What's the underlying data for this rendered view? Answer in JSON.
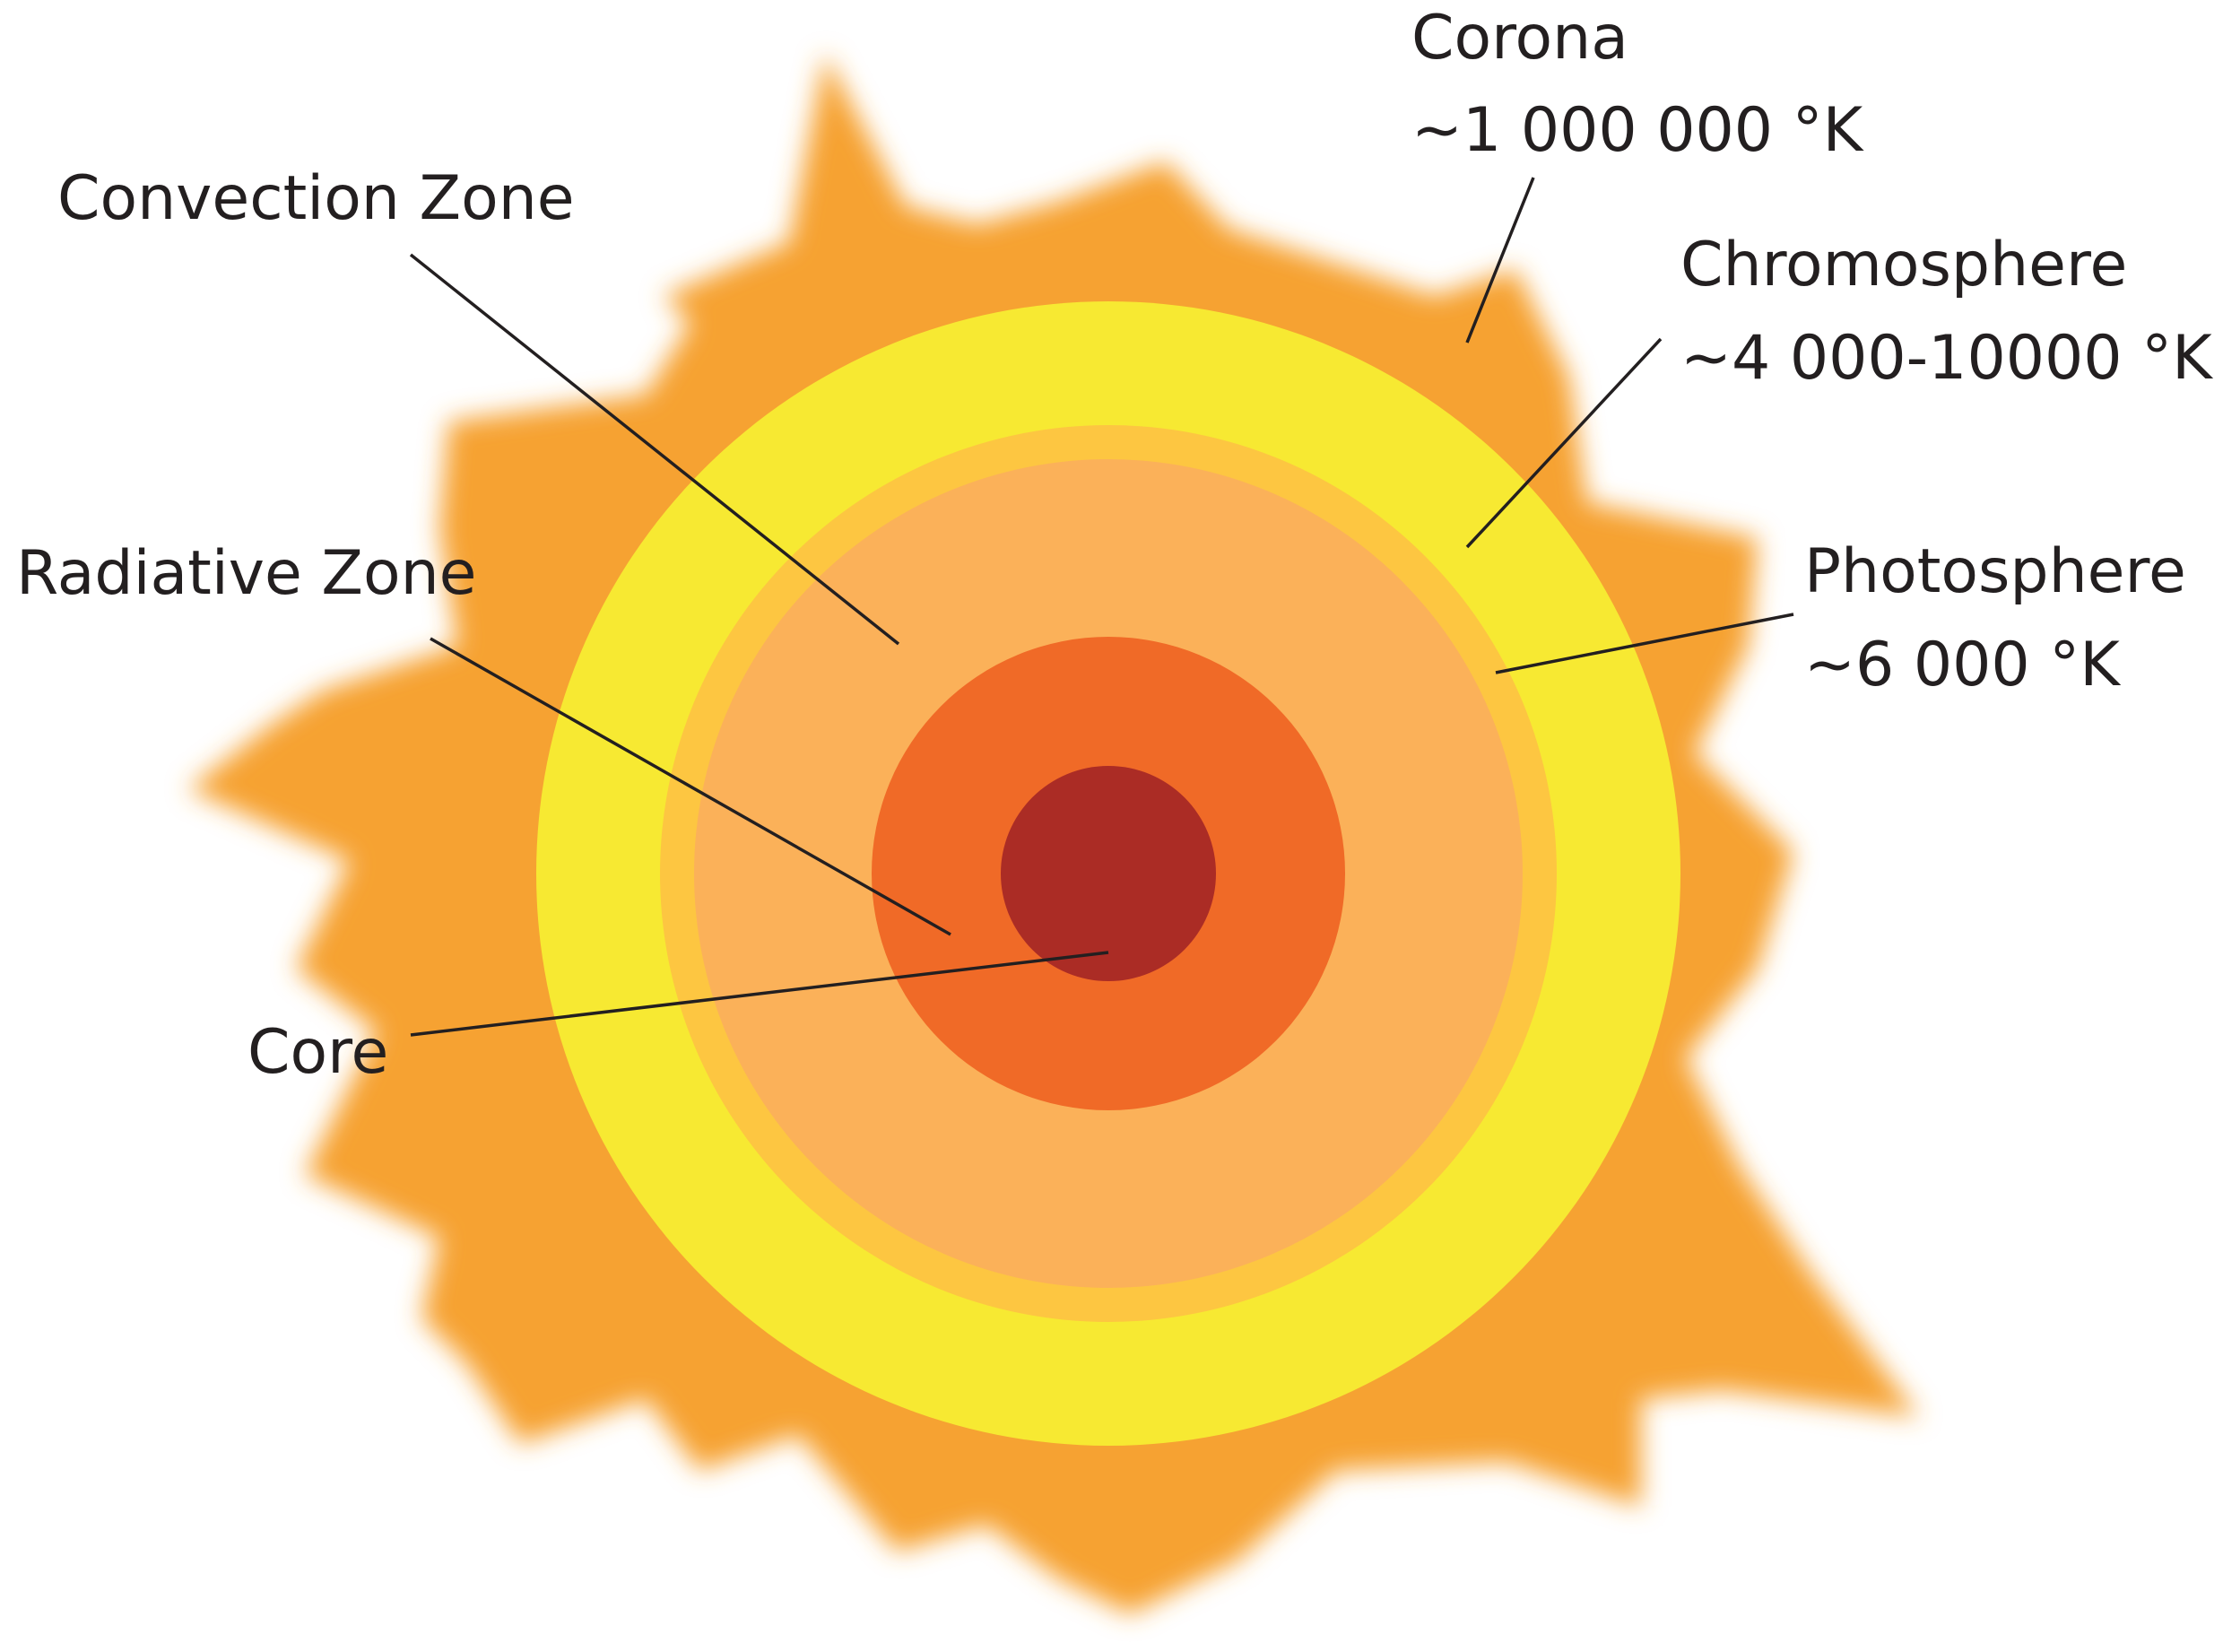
{
  "layers": [
    {
      "name": "Corona",
      "temperature": "~1 000 000 °K",
      "color": "#f6a230"
    },
    {
      "name": "Chromosphere",
      "temperature": "~4 000-10000 °K",
      "color": "#f7e932"
    },
    {
      "name": "Photosphere",
      "temperature": "~6 000 °K",
      "color": "#fdc641"
    },
    {
      "name": "Convection Zone",
      "temperature": "",
      "color": "#fbb159"
    },
    {
      "name": "Radiative Zone",
      "temperature": "",
      "color": "#f06a27"
    },
    {
      "name": "Core",
      "temperature": "",
      "color": "#ab2c25"
    }
  ]
}
